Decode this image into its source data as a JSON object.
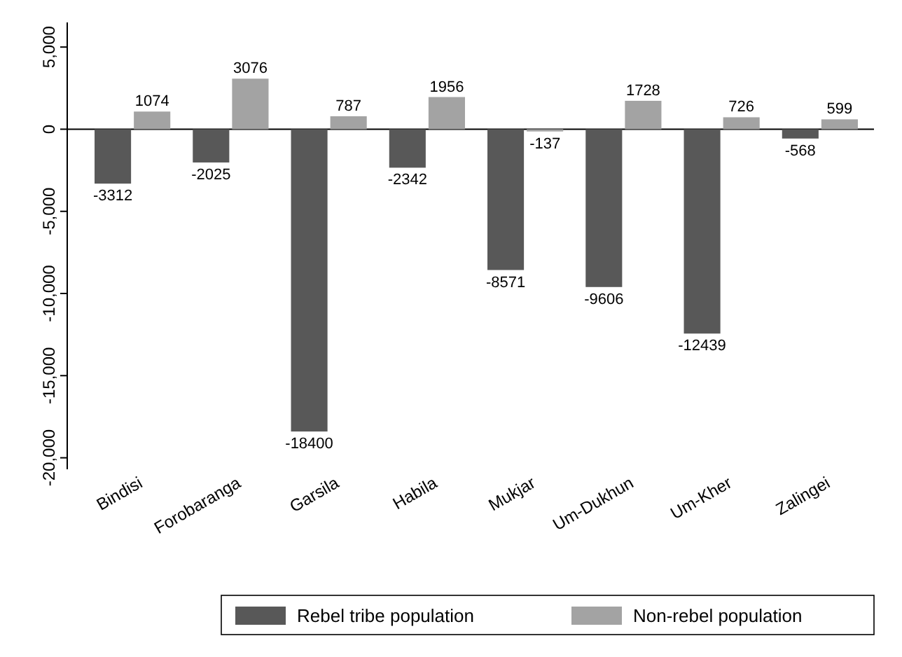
{
  "chart_data": {
    "type": "bar",
    "categories": [
      "Bindisi",
      "Forobaranga",
      "Garsila",
      "Habila",
      "Mukjar",
      "Um-Dukhun",
      "Um-Kher",
      "Zalingei"
    ],
    "series": [
      {
        "name": "Rebel tribe population",
        "color": "#585858",
        "values": [
          -3312,
          -2025,
          -18400,
          -2342,
          -8571,
          -9606,
          -12439,
          -568
        ]
      },
      {
        "name": "Non-rebel population",
        "color": "#a3a3a3",
        "values": [
          1074,
          3076,
          787,
          1956,
          -137,
          1728,
          726,
          599
        ]
      }
    ],
    "ylim": [
      -20700,
      6500
    ],
    "yticks": [
      {
        "value": 5000,
        "label": "5,000"
      },
      0,
      {
        "value": -5000,
        "label": "-5,000"
      },
      {
        "value": -10000,
        "label": "-10,000"
      },
      {
        "value": -15000,
        "label": "-15,000"
      },
      {
        "value": -20000,
        "label": "-20,000"
      }
    ],
    "ref_lines": [
      {
        "axis": "y",
        "value": 0,
        "color": "#000000"
      }
    ],
    "data_labels": true,
    "legend": "bottom",
    "grid": false
  }
}
